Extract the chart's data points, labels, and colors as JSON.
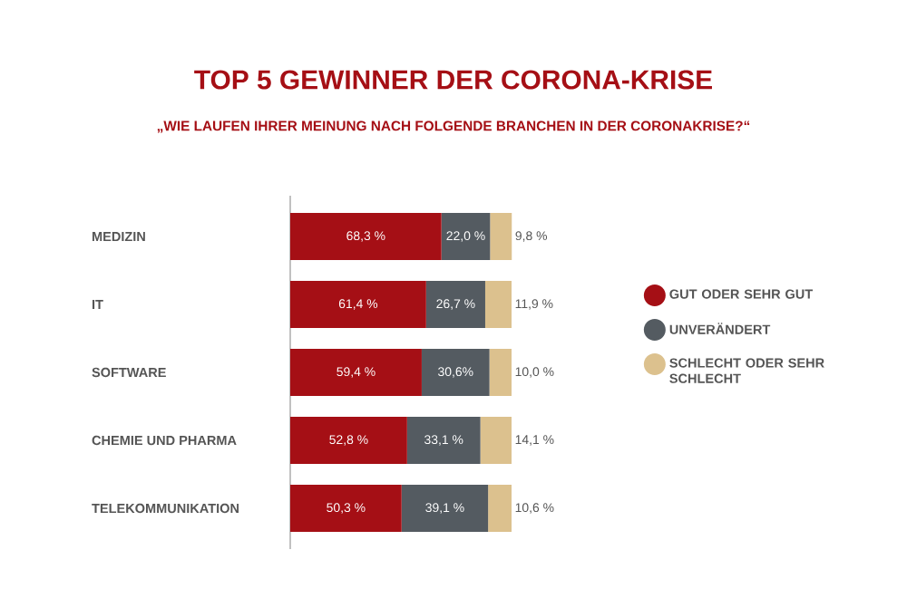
{
  "chart_data": {
    "type": "bar",
    "orientation": "horizontal",
    "stacked": true,
    "title": "TOP 5 GEWINNER DER CORONA-KRISE",
    "subtitle": "„WIE LAUFEN IHRER MEINUNG NACH FOLGENDE BRANCHEN IN DER CORONAKRISE?“",
    "categories": [
      "MEDIZIN",
      "IT",
      "SOFTWARE",
      "CHEMIE UND PHARMA",
      "TELEKOMMUNIKATION"
    ],
    "series": [
      {
        "name": "GUT ODER SEHR GUT",
        "color": "#a50f15",
        "values": [
          68.3,
          61.4,
          59.4,
          52.8,
          50.3
        ],
        "value_labels": [
          "68,3 %",
          "61,4 %",
          "59,4  %",
          "52,8 %",
          "50,3 %"
        ]
      },
      {
        "name": "UNVERÄNDERT",
        "color": "#545b61",
        "values": [
          22.0,
          26.7,
          30.6,
          33.1,
          39.1
        ],
        "value_labels": [
          "22,0 %",
          "26,7 %",
          "30,6%",
          "33,1 %",
          "39,1 %"
        ]
      },
      {
        "name": "SCHLECHT ODER SEHR SCHLECHT",
        "color": "#dcc18e",
        "values": [
          9.8,
          11.9,
          10.0,
          14.1,
          10.6
        ],
        "value_labels": [
          "9,8 %",
          "11,9 %",
          "10,0 %",
          "14,1 %",
          "10,6 %"
        ]
      }
    ],
    "legend": "right",
    "tick_labels": "y"
  }
}
